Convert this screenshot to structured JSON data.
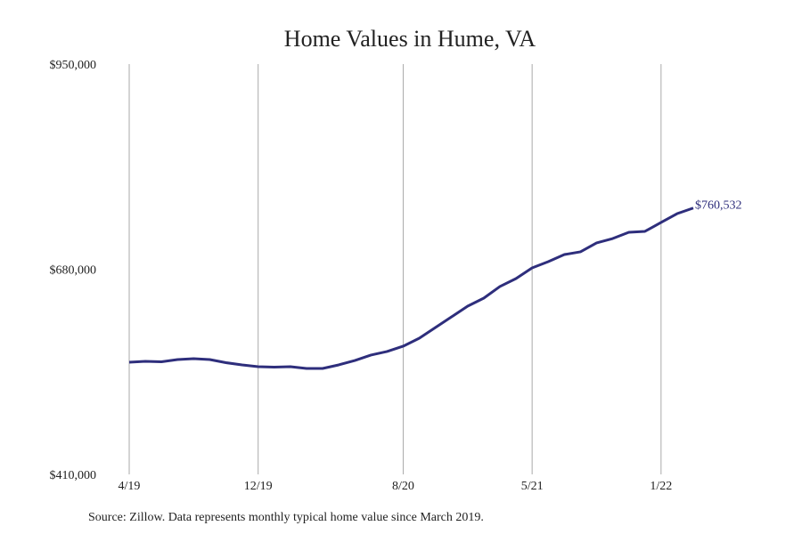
{
  "chart_data": {
    "type": "line",
    "title": "Home Values in Hume, VA",
    "source": "Source: Zillow. Data represents monthly typical home value since March 2019.",
    "categories": [
      "4/19",
      null,
      null,
      null,
      null,
      null,
      null,
      null,
      "12/19",
      null,
      null,
      null,
      null,
      null,
      null,
      null,
      null,
      "8/20",
      null,
      null,
      null,
      null,
      null,
      null,
      null,
      "5/21",
      null,
      null,
      null,
      null,
      null,
      null,
      null,
      "1/22",
      null,
      null
    ],
    "series": [
      {
        "name": "Hume, VA",
        "color": "#2e2e7c",
        "values": [
          557600,
          558800,
          558200,
          561100,
          562300,
          561100,
          557000,
          554100,
          551700,
          551200,
          551700,
          549400,
          549400,
          554100,
          559900,
          567000,
          571700,
          578700,
          589200,
          603300,
          617300,
          631400,
          641900,
          657200,
          667700,
          681800,
          690000,
          699300,
          702900,
          714600,
          720400,
          728600,
          729800,
          741500,
          753200,
          760532
        ],
        "value_labels": [
          null,
          null,
          null,
          null,
          null,
          null,
          null,
          null,
          null,
          null,
          null,
          null,
          null,
          null,
          null,
          null,
          null,
          null,
          null,
          null,
          null,
          null,
          null,
          null,
          null,
          null,
          null,
          null,
          null,
          null,
          null,
          null,
          null,
          null,
          null,
          "$760,532"
        ]
      }
    ],
    "ylim": [
      410000,
      950000
    ],
    "yticks": [
      {
        "value": 410000,
        "label": "$410,000"
      },
      {
        "value": 680000,
        "label": "$680,000"
      },
      {
        "value": 950000,
        "label": "$950,000"
      }
    ],
    "grid": "x"
  }
}
